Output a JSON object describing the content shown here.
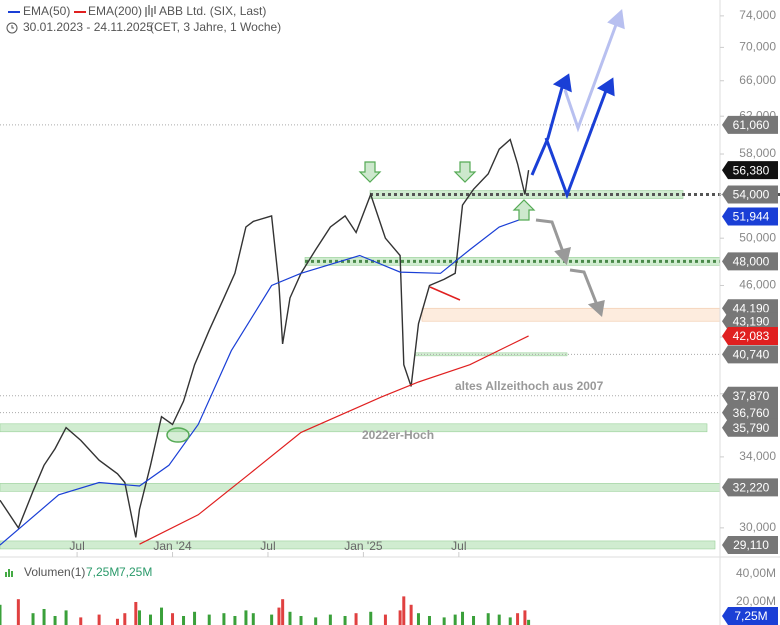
{
  "chart_data": {
    "type": "line",
    "title": "ABB Ltd. (SIX, Last)",
    "subtitle": "30.01.2023 - 24.11.2025",
    "timezone_note": "(CET, 3 Jahre, 1 Woche)",
    "log_scale": true,
    "grid": false,
    "xlim": [
      1,
      196.6
    ],
    "xticks": [
      {
        "value": 22,
        "label": "Jul"
      },
      {
        "value": 48,
        "label": "Jan '24"
      },
      {
        "value": 74,
        "label": "Jul"
      },
      {
        "value": 100,
        "label": "Jan '25"
      },
      {
        "value": 126,
        "label": "Jul"
      }
    ],
    "ylim": [
      28750,
      76100
    ],
    "yticks": [
      {
        "value": 30000,
        "label": "30,000"
      },
      {
        "value": 34000,
        "label": "34,000"
      },
      {
        "value": 38000,
        "label": "38,000"
      },
      {
        "value": 42000,
        "label": "42,000"
      },
      {
        "value": 46000,
        "label": "46,000"
      },
      {
        "value": 50000,
        "label": "50,000"
      },
      {
        "value": 54000,
        "label": "54,000"
      },
      {
        "value": 58000,
        "label": "58,000"
      },
      {
        "value": 62000,
        "label": "62,000"
      },
      {
        "value": 66000,
        "label": "66,000"
      },
      {
        "value": 70000,
        "label": "70,000"
      },
      {
        "value": 74000,
        "label": "74,000"
      }
    ],
    "series": [
      {
        "name": "ABB Ltd. (SIX, Last)",
        "color": "#333333",
        "x": [
          1,
          6,
          10,
          13,
          16,
          19,
          23,
          28,
          33,
          35,
          38,
          39,
          42,
          45,
          48,
          51,
          54,
          58,
          62,
          65,
          68,
          70,
          75,
          77,
          78,
          80,
          83,
          87,
          91,
          95,
          98,
          102,
          106,
          110,
          111,
          113,
          115,
          118,
          122,
          125,
          127,
          130,
          134,
          137,
          140,
          142,
          144,
          145
        ],
        "values": [
          31500,
          30000,
          32000,
          33500,
          34500,
          35800,
          35000,
          33800,
          33000,
          32500,
          29500,
          31000,
          33500,
          36500,
          36000,
          37500,
          40000,
          42500,
          45000,
          47000,
          51000,
          51500,
          52000,
          46000,
          41500,
          45000,
          47000,
          49000,
          51000,
          52000,
          50500,
          54000,
          50000,
          48500,
          40000,
          38500,
          43000,
          46000,
          46500,
          47000,
          53000,
          54500,
          56000,
          58500,
          59500,
          57000,
          54000,
          56380
        ]
      },
      {
        "name": "EMA(50)",
        "color": "#1a3fd6",
        "x": [
          1,
          17,
          28,
          39,
          47,
          55,
          64,
          75,
          83,
          99,
          110,
          121,
          129,
          137,
          145
        ],
        "values": [
          29100,
          31800,
          32500,
          32300,
          33500,
          36000,
          41000,
          46000,
          47000,
          48500,
          47100,
          47000,
          49000,
          51000,
          51944
        ]
      },
      {
        "name": "EMA(200)",
        "color": "#e02020",
        "x": [
          39,
          55,
          69,
          83,
          105,
          115,
          129,
          145
        ],
        "values": [
          29150,
          30700,
          33000,
          35500,
          37800,
          38800,
          40000,
          42083
        ]
      }
    ],
    "levels": [
      {
        "value": 61060,
        "label": "61,060",
        "color": "#777777"
      },
      {
        "value": 56380,
        "label": "56,380",
        "color": "#111111"
      },
      {
        "value": 54000,
        "label": "54,000",
        "color": "#777777"
      },
      {
        "value": 51944,
        "label": "51,944",
        "color": "#1a3fd6"
      },
      {
        "value": 48000,
        "label": "48,000",
        "color": "#777777"
      },
      {
        "value": 44190,
        "label": "44,190",
        "color": "#777777"
      },
      {
        "value": 43190,
        "label": "43,190",
        "color": "#777777"
      },
      {
        "value": 42083,
        "label": "42,083",
        "color": "#e02020"
      },
      {
        "value": 40740,
        "label": "40,740",
        "color": "#777777"
      },
      {
        "value": 37870,
        "label": "37,870",
        "color": "#777777"
      },
      {
        "value": 36760,
        "label": "36,760",
        "color": "#777777"
      },
      {
        "value": 35790,
        "label": "35,790",
        "color": "#777777"
      },
      {
        "value": 32220,
        "label": "32,220",
        "color": "#777777"
      },
      {
        "value": 29110,
        "label": "29,110",
        "color": "#777777"
      }
    ],
    "annotations": [
      {
        "text": "altes Allzeithoch aus 2007",
        "level": 37870
      },
      {
        "text": "2022er-Hoch",
        "level": 35790
      }
    ],
    "volume": {
      "name": "Volumen(1)",
      "legend_value": "7,25M",
      "legend_value_2": "7,25M",
      "tag": "7,25M",
      "color": "#1a3fd6",
      "ylim": [
        0,
        51.4
      ],
      "yticks": [
        {
          "value": 20,
          "label": "20,00M"
        },
        {
          "value": 40,
          "label": "40,00M"
        }
      ],
      "values": [
        18,
        22,
        12,
        15,
        10,
        14,
        9,
        11,
        8,
        12,
        20,
        14,
        11,
        16,
        12,
        10,
        13,
        11,
        12,
        10,
        14,
        12,
        11,
        16,
        22,
        13,
        10,
        9,
        11,
        10,
        12,
        13,
        11,
        14,
        24,
        18,
        12,
        10,
        9,
        11,
        13,
        10,
        12,
        11,
        9,
        12,
        14,
        7.25
      ]
    }
  }
}
